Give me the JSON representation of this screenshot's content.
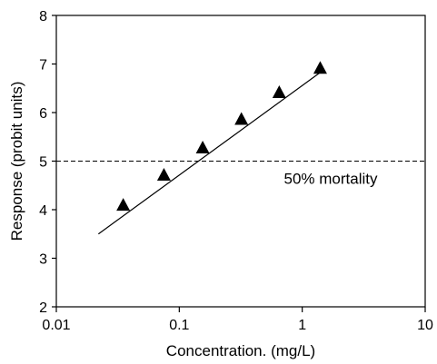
{
  "chart_data": {
    "type": "scatter",
    "xlabel": "Concentration. (mg/L)",
    "ylabel": "Response (probit units)",
    "x_scale": "log",
    "xlim": [
      0.01,
      10
    ],
    "ylim": [
      2,
      8
    ],
    "x_ticks": [
      {
        "value": 0.01,
        "label": "0.01"
      },
      {
        "value": 0.1,
        "label": "0.1"
      },
      {
        "value": 1,
        "label": "1"
      },
      {
        "value": 10,
        "label": "10"
      }
    ],
    "y_ticks": [
      2,
      3,
      4,
      5,
      6,
      7,
      8
    ],
    "grid": false,
    "series": [
      {
        "marker": "triangle",
        "color": "#000000",
        "points": [
          {
            "x": 0.035,
            "y": 4.1
          },
          {
            "x": 0.075,
            "y": 4.72
          },
          {
            "x": 0.155,
            "y": 5.28
          },
          {
            "x": 0.32,
            "y": 5.87
          },
          {
            "x": 0.65,
            "y": 6.42
          },
          {
            "x": 1.4,
            "y": 6.92
          }
        ]
      }
    ],
    "fit_line": {
      "x": [
        0.022,
        1.5
      ],
      "y": [
        3.5,
        6.88
      ],
      "color": "#000000"
    },
    "reference_line": {
      "y": 5,
      "style": "dashed",
      "label": "50% mortality"
    }
  }
}
